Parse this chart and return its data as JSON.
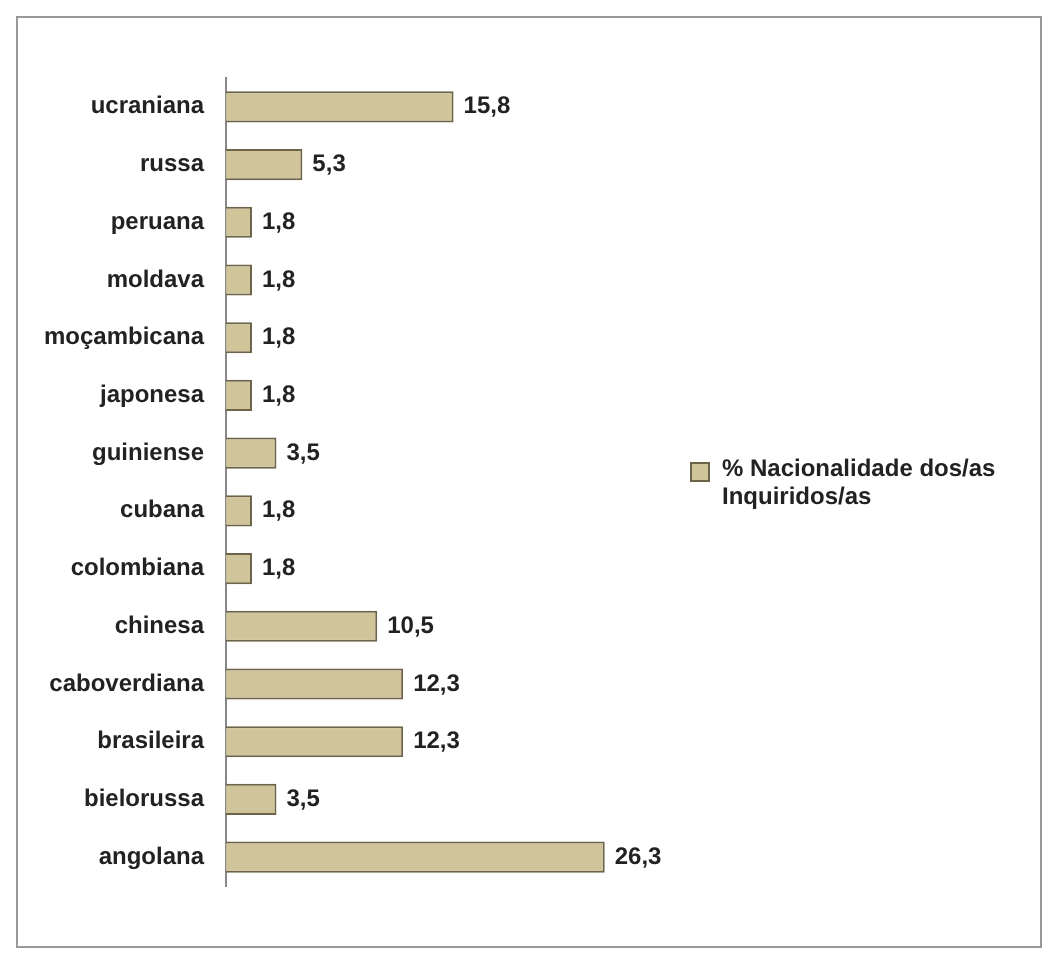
{
  "chart_data": {
    "type": "bar",
    "orientation": "horizontal",
    "categories": [
      "ucraniana",
      "russa",
      "peruana",
      "moldava",
      "moçambicana",
      "japonesa",
      "guiniense",
      "cubana",
      "colombiana",
      "chinesa",
      "caboverdiana",
      "brasileira",
      "bielorussa",
      "angolana"
    ],
    "series": [
      {
        "name": "% Nacionalidade dos/as Inquiridos/as",
        "color": "#cfc49a",
        "values": [
          15.8,
          5.3,
          1.8,
          1.8,
          1.8,
          1.8,
          3.5,
          1.8,
          1.8,
          10.5,
          12.3,
          12.3,
          3.5,
          26.3
        ],
        "value_labels": [
          "15,8",
          "5,3",
          "1,8",
          "1,8",
          "1,8",
          "1,8",
          "3,5",
          "1,8",
          "1,8",
          "10,5",
          "12,3",
          "12,3",
          "3,5",
          "26,3"
        ]
      }
    ],
    "legend": "right"
  }
}
